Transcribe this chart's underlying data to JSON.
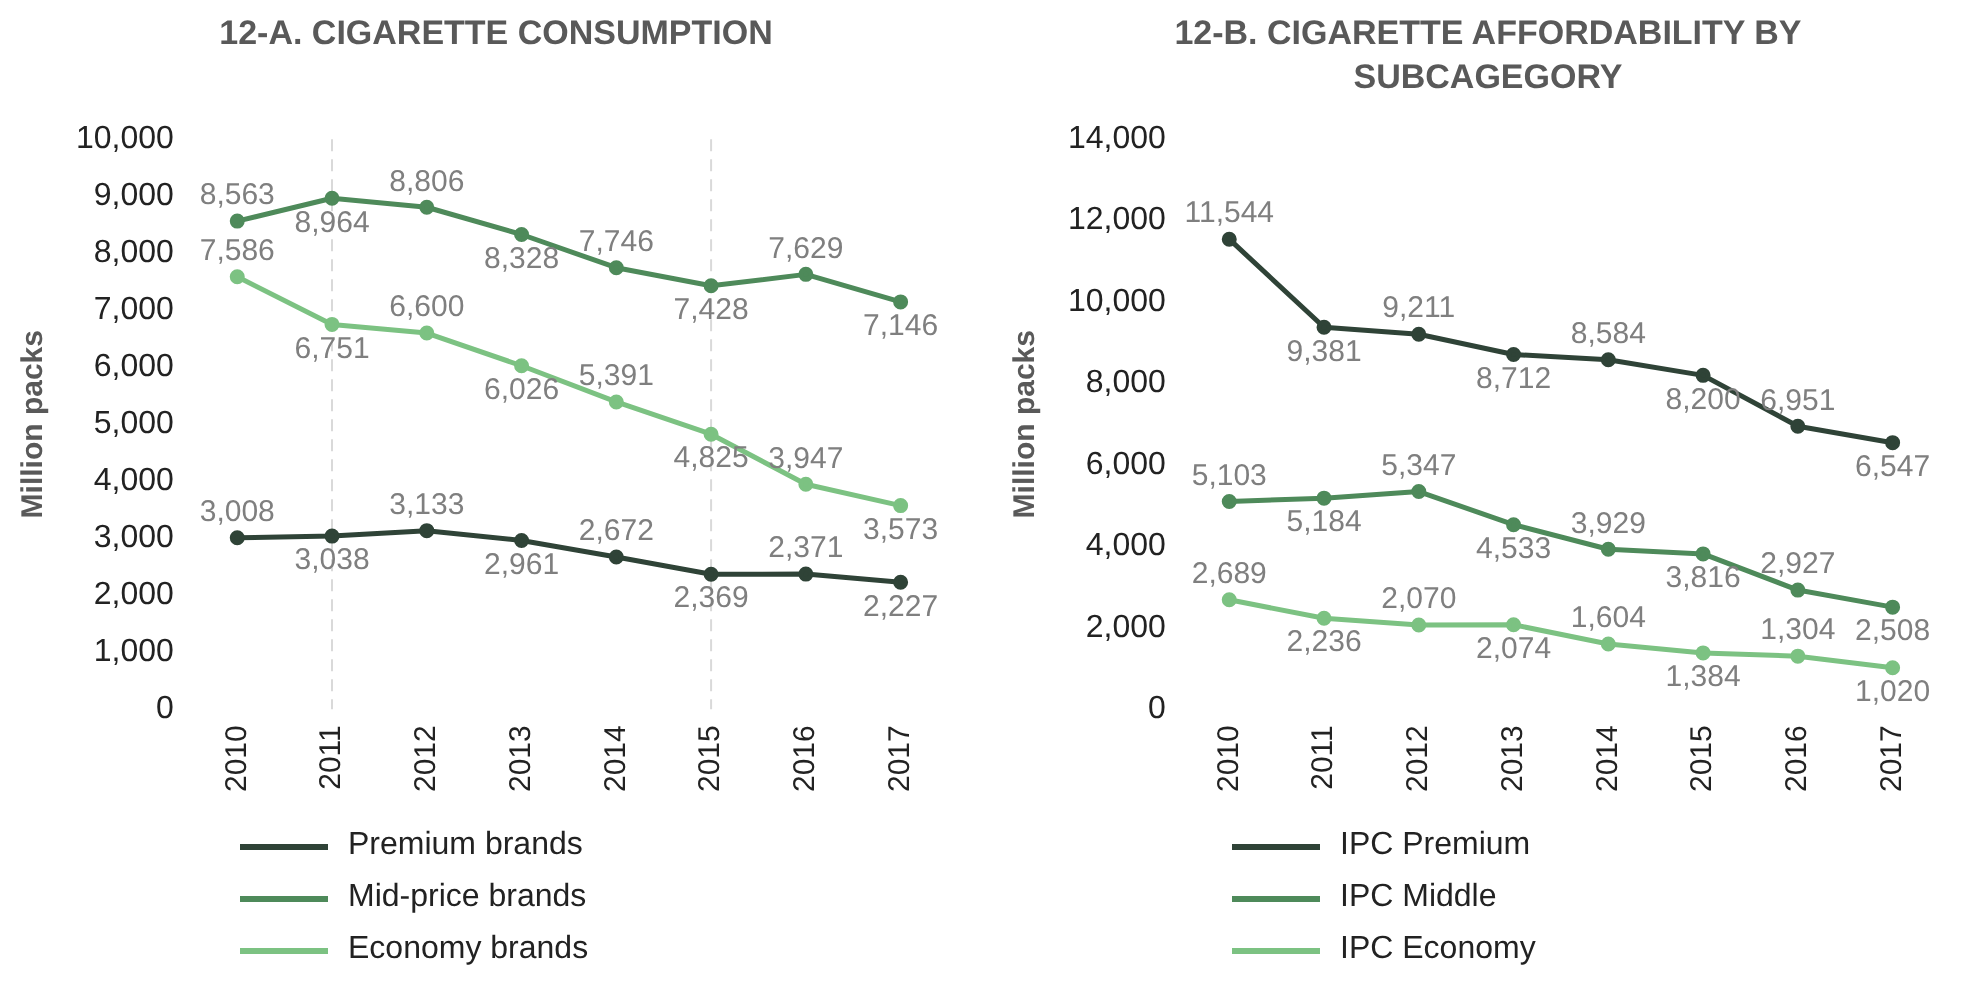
{
  "chart_data": [
    {
      "type": "line",
      "title": "12-A. CIGARETTE CONSUMPTION",
      "ylabel": "Million packs",
      "categories": [
        "2010",
        "2011",
        "2012",
        "2013",
        "2014",
        "2015",
        "2016",
        "2017"
      ],
      "series": [
        {
          "name": "Premium brands",
          "color": "#2f4337",
          "values": [
            3008,
            3038,
            3133,
            2961,
            2672,
            2369,
            2371,
            2227
          ],
          "value_labels": [
            "3,008",
            "3,038",
            "3,133",
            "2,961",
            "2,672",
            "2,369",
            "2,371",
            "2,227"
          ]
        },
        {
          "name": "Mid-price brands",
          "color": "#4e8a5a",
          "values": [
            8563,
            8964,
            8806,
            8328,
            7746,
            7428,
            7629,
            7146
          ],
          "value_labels": [
            "8,563",
            "8,964",
            "8,806",
            "8,328",
            "7,746",
            "7,428",
            "7,629",
            "7,146"
          ]
        },
        {
          "name": "Economy brands",
          "color": "#7cc282",
          "values": [
            7586,
            6751,
            6600,
            6026,
            5391,
            4825,
            3947,
            3573
          ],
          "value_labels": [
            "7,586",
            "6,751",
            "6,600",
            "6,026",
            "5,391",
            "4,825",
            "3,947",
            "3,573"
          ]
        }
      ],
      "ylim": [
        0,
        10000
      ],
      "yticks": [
        0,
        {
          "value": 1000,
          "label": "1,000"
        },
        {
          "value": 2000,
          "label": "2,000"
        },
        {
          "value": 3000,
          "label": "3,000"
        },
        {
          "value": 4000,
          "label": "4,000"
        },
        {
          "value": 5000,
          "label": "5,000"
        },
        {
          "value": 6000,
          "label": "6,000"
        },
        {
          "value": 7000,
          "label": "7,000"
        },
        {
          "value": 8000,
          "label": "8,000"
        },
        {
          "value": 9000,
          "label": "9,000"
        },
        {
          "value": 10000,
          "label": "10,000"
        }
      ],
      "grid": false,
      "legend": "bottom",
      "marker": "circle",
      "line_style": "solid",
      "ref_lines": [
        {
          "axis": "x",
          "value": "2011",
          "color": "#d9d9d9",
          "line_style": "dashed"
        },
        {
          "axis": "x",
          "value": "2015",
          "color": "#d9d9d9",
          "line_style": "dashed"
        }
      ]
    },
    {
      "type": "line",
      "title": "12-B. CIGARETTE AFFORDABILITY BY SUBCAGEGORY",
      "ylabel": "Million packs",
      "categories": [
        "2010",
        "2011",
        "2012",
        "2013",
        "2014",
        "2015",
        "2016",
        "2017"
      ],
      "series": [
        {
          "name": "IPC Premium",
          "color": "#2f4337",
          "values": [
            11544,
            9381,
            9211,
            8712,
            8584,
            8200,
            6951,
            6547
          ],
          "value_labels": [
            "11,544",
            "9,381",
            "9,211",
            "8,712",
            "8,584",
            "8,200",
            "6,951",
            "6,547"
          ]
        },
        {
          "name": "IPC Middle",
          "color": "#4e8a5a",
          "values": [
            5103,
            5184,
            5347,
            4533,
            3929,
            3816,
            2927,
            2508
          ],
          "value_labels": [
            "5,103",
            "5,184",
            "5,347",
            "4,533",
            "3,929",
            "3,816",
            "2,927",
            "2,508"
          ]
        },
        {
          "name": "IPC Economy",
          "color": "#7cc282",
          "values": [
            2689,
            2236,
            2070,
            2074,
            1604,
            1384,
            1304,
            1020
          ],
          "value_labels": [
            "2,689",
            "2,236",
            "2,070",
            "2,074",
            "1,604",
            "1,384",
            "1,304",
            "1,020"
          ]
        }
      ],
      "ylim": [
        0,
        14000
      ],
      "yticks": [
        0,
        {
          "value": 2000,
          "label": "2,000"
        },
        {
          "value": 4000,
          "label": "4,000"
        },
        {
          "value": 6000,
          "label": "6,000"
        },
        {
          "value": 8000,
          "label": "8,000"
        },
        {
          "value": 10000,
          "label": "10,000"
        },
        {
          "value": 12000,
          "label": "12,000"
        },
        {
          "value": 14000,
          "label": "14,000"
        }
      ],
      "grid": false,
      "legend": "bottom",
      "marker": "circle",
      "line_style": "solid"
    }
  ]
}
